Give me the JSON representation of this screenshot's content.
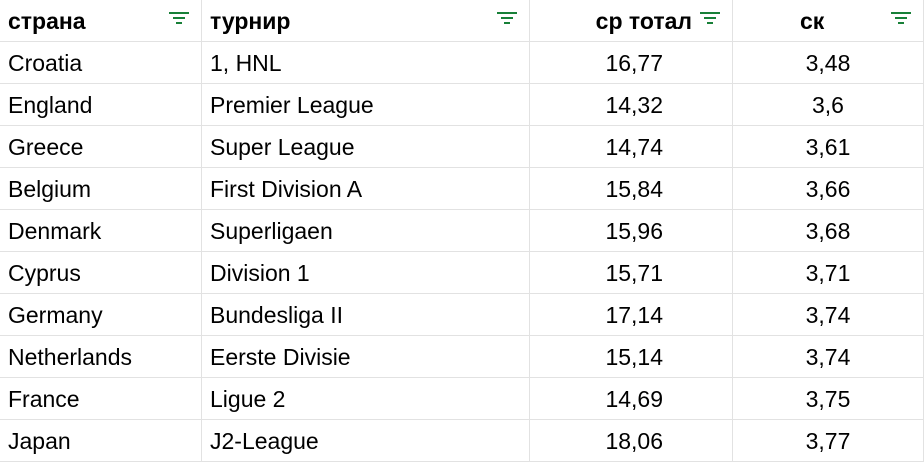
{
  "table": {
    "headers": [
      "страна",
      "турнир",
      "ср тотал",
      "ск"
    ],
    "rows": [
      [
        "Croatia",
        "1, HNL",
        "16,77",
        "3,48"
      ],
      [
        "England",
        "Premier League",
        "14,32",
        "3,6"
      ],
      [
        "Greece",
        "Super League",
        "14,74",
        "3,61"
      ],
      [
        "Belgium",
        "First Division A",
        "15,84",
        "3,66"
      ],
      [
        "Denmark",
        "Superligaen",
        "15,96",
        "3,68"
      ],
      [
        "Cyprus",
        "Division 1",
        "15,71",
        "3,71"
      ],
      [
        "Germany",
        "Bundesliga II",
        "17,14",
        "3,74"
      ],
      [
        "Netherlands",
        "Eerste Divisie",
        "15,14",
        "3,74"
      ],
      [
        "France",
        "Ligue 2",
        "14,69",
        "3,75"
      ],
      [
        "Japan",
        "J2-League",
        "18,06",
        "3,77"
      ]
    ]
  }
}
